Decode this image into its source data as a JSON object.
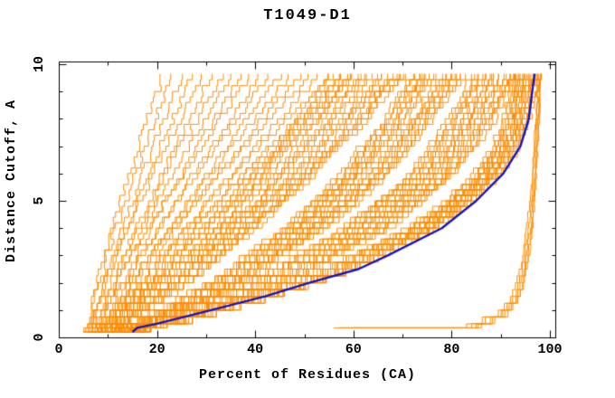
{
  "chart_data": {
    "type": "line",
    "title": "T1049-D1",
    "xlabel": "Percent of Residues (CA)",
    "ylabel": "Distance Cutoff, A",
    "xlim": [
      0,
      101.1
    ],
    "ylim": [
      0,
      10.1
    ],
    "x_major_ticks": [
      0,
      20,
      40,
      60,
      80,
      100
    ],
    "x_minor_ticks": [
      10,
      30,
      50,
      70,
      90
    ],
    "y_major_ticks": [
      0,
      5,
      10
    ],
    "y_minor_ticks": [
      1,
      2,
      3,
      4,
      6,
      7,
      8,
      9
    ],
    "grid": false,
    "legend": null,
    "colors": {
      "models": "#ff8c00",
      "highlight": "#1414c8",
      "axis": "#000000",
      "background": "#ffffff"
    },
    "y_levels": [
      0.2,
      0.35,
      0.5,
      1,
      1.5,
      2,
      2.5,
      3,
      4,
      5,
      6,
      7,
      8,
      9,
      9.65
    ],
    "highlight_curve": [
      15,
      16,
      20,
      31,
      42,
      51,
      61,
      67,
      78,
      85,
      90.5,
      94,
      95.7,
      96.4,
      96.9
    ],
    "model_curves_left_fan": [
      [
        5,
        5.5,
        6,
        6.5,
        7,
        7.5,
        8.5,
        9,
        11,
        12.5,
        14.5,
        16,
        18,
        20,
        21
      ],
      [
        5,
        5.5,
        6,
        6.5,
        7,
        8,
        9,
        9.5,
        11.5,
        13.5,
        15.5,
        17.5,
        19.5,
        21.5,
        23
      ],
      [
        6,
        6.5,
        7,
        7.5,
        8.5,
        9,
        10,
        11,
        13,
        15,
        17,
        19,
        21.5,
        23.5,
        25
      ],
      [
        6,
        6.5,
        7,
        7.5,
        8.5,
        9.5,
        10.5,
        11.5,
        13.5,
        16,
        18,
        20.5,
        23,
        25.5,
        27
      ],
      [
        5,
        5.5,
        6,
        7,
        8,
        9,
        10,
        11,
        13.5,
        16.5,
        19,
        21.5,
        24.5,
        27,
        29
      ],
      [
        7,
        7.5,
        8,
        9,
        10,
        11,
        12,
        13,
        15.5,
        18.5,
        21,
        23.5,
        26.5,
        29,
        31
      ],
      [
        6,
        7,
        7,
        8,
        9,
        10.5,
        11.5,
        13,
        16,
        19,
        21.5,
        24.5,
        28,
        31,
        33
      ],
      [
        7,
        7.5,
        8,
        9,
        10.5,
        11.5,
        13,
        14.5,
        17,
        20,
        23,
        26.5,
        29.5,
        33,
        35
      ],
      [
        8,
        8.5,
        9,
        10,
        11.5,
        12.5,
        14,
        15.5,
        18.5,
        21.5,
        25,
        28,
        31.5,
        35,
        37
      ],
      [
        6.5,
        7,
        7.5,
        8.5,
        10,
        11.5,
        13,
        14.5,
        18,
        21.5,
        25,
        29,
        32.5,
        36.5,
        39
      ],
      [
        8.5,
        9,
        9.5,
        10.5,
        12,
        13.5,
        15,
        16.5,
        20,
        23.5,
        27,
        31,
        34.5,
        38.5,
        41
      ],
      [
        7.5,
        8,
        8.5,
        9.5,
        11.5,
        13,
        14.5,
        16.5,
        20,
        24,
        28,
        32,
        36,
        40,
        43
      ],
      [
        9.5,
        10,
        10.5,
        11.5,
        13.5,
        15,
        16.5,
        18.5,
        22,
        26,
        30,
        34,
        38,
        42,
        45
      ],
      [
        8.5,
        9,
        9.5,
        11,
        12.5,
        14.5,
        16,
        18,
        22,
        26.5,
        30.5,
        35,
        39.5,
        44,
        47
      ],
      [
        9.5,
        10,
        10.5,
        12,
        14,
        15.5,
        17.5,
        19.5,
        23.5,
        28,
        32,
        36.5,
        41,
        46,
        49
      ],
      [
        7.5,
        8,
        9,
        10.5,
        12.5,
        14,
        16,
        18.5,
        23,
        27.5,
        32.5,
        37.5,
        42.5,
        47.5,
        51
      ],
      [
        10.5,
        11,
        11.5,
        13,
        15,
        17,
        19,
        21,
        25.5,
        30,
        35,
        39.5,
        44.5,
        49.5,
        53
      ],
      [
        9.5,
        10,
        11,
        12.5,
        14.5,
        16.5,
        18.5,
        21,
        25.5,
        30.5,
        35.5,
        40.5,
        46,
        51.5,
        55
      ],
      [
        10.5,
        11,
        12,
        13.5,
        15.5,
        17.5,
        20,
        22,
        27,
        32,
        37,
        42.5,
        48,
        53.5,
        57
      ],
      [
        8.5,
        9.5,
        10,
        12,
        14,
        16.5,
        18.5,
        21,
        26.5,
        32,
        37.5,
        43,
        49,
        55,
        59
      ],
      [
        10.5,
        11,
        12,
        14,
        16,
        18,
        20.5,
        23,
        28,
        33.5,
        39,
        44.5,
        50,
        56,
        60
      ],
      [
        11.5,
        12,
        13,
        15,
        17,
        19.5,
        21.5,
        24.5,
        29.5,
        35,
        40.5,
        46,
        52,
        58,
        62
      ]
    ],
    "model_curves_main_cluster": [
      [
        5,
        6.5,
        7,
        11,
        14,
        17,
        21,
        23,
        29,
        34,
        39,
        44,
        48,
        52,
        55
      ],
      [
        6,
        7.5,
        8,
        12,
        15,
        18,
        22,
        25,
        31,
        36,
        41,
        45,
        50,
        54,
        57
      ],
      [
        6,
        8,
        9,
        12,
        16,
        19,
        22,
        26,
        32,
        37,
        42,
        47,
        52,
        56,
        59
      ],
      [
        7,
        9,
        10,
        13,
        17,
        20,
        24,
        27,
        33,
        39,
        44,
        49,
        54,
        58,
        61
      ],
      [
        7,
        9,
        10,
        14,
        17,
        21,
        24,
        28,
        34,
        40,
        45,
        50,
        55,
        60,
        63
      ],
      [
        8,
        10,
        11,
        15,
        18,
        22,
        26,
        29,
        35,
        41,
        47,
        52,
        57,
        62,
        65
      ],
      [
        8,
        10,
        11,
        15,
        19,
        22,
        26,
        29,
        36,
        42,
        48,
        53,
        58,
        63,
        66
      ],
      [
        9,
        11,
        12,
        16,
        20,
        23,
        27,
        31,
        37,
        44,
        49,
        55,
        60,
        64,
        68
      ],
      [
        9,
        11,
        12,
        16,
        20,
        24,
        28,
        31,
        38,
        44,
        50,
        55,
        61,
        65,
        69
      ],
      [
        10,
        12,
        13,
        17,
        21,
        25,
        29,
        32,
        39,
        45,
        51,
        56,
        62,
        66,
        70
      ],
      [
        10,
        12,
        13,
        19,
        24,
        29,
        34,
        37,
        45,
        51,
        57,
        61,
        66,
        69,
        72
      ],
      [
        11,
        13,
        14,
        20,
        25,
        30,
        35,
        38,
        46,
        52,
        58,
        62,
        67,
        70,
        73
      ],
      [
        11,
        13,
        14,
        20,
        25,
        30,
        35,
        39,
        47,
        53,
        59,
        63,
        68,
        71,
        74
      ],
      [
        12,
        14,
        15,
        21,
        26,
        31,
        36,
        40,
        48,
        54,
        60,
        64,
        69,
        72,
        75
      ],
      [
        12,
        14,
        15,
        21,
        26,
        31,
        36,
        40,
        48,
        55,
        60,
        65,
        70,
        73,
        76
      ],
      [
        13,
        15,
        16,
        22,
        28,
        33,
        38,
        42,
        50,
        56,
        62,
        67,
        72,
        75,
        78
      ],
      [
        13,
        15,
        16,
        22,
        28,
        33,
        38,
        42,
        50,
        57,
        63,
        68,
        72,
        76,
        79
      ],
      [
        14,
        16,
        17,
        23,
        29,
        34,
        39,
        43,
        51,
        58,
        64,
        69,
        73,
        77,
        80
      ],
      [
        14,
        16,
        17,
        23,
        29,
        34,
        39,
        43,
        52,
        59,
        65,
        70,
        74,
        78,
        81
      ],
      [
        15,
        17,
        18,
        24,
        30,
        35,
        40,
        44,
        53,
        60,
        66,
        71,
        75,
        79,
        82
      ],
      [
        8,
        10,
        12,
        20,
        28,
        35,
        42,
        47,
        57,
        64,
        71,
        75,
        79,
        82,
        84
      ],
      [
        9,
        11,
        13,
        21,
        29,
        36,
        43,
        48,
        58,
        65,
        72,
        76,
        80,
        83,
        85
      ],
      [
        10,
        12,
        14,
        22,
        30,
        37,
        44,
        49,
        59,
        66,
        73,
        77,
        81,
        84,
        86
      ],
      [
        11,
        13,
        15,
        23,
        31,
        38,
        45,
        50,
        60,
        67,
        74,
        78,
        82,
        85,
        87
      ],
      [
        12,
        14,
        16,
        24,
        32,
        39,
        46,
        51,
        61,
        68,
        75,
        79,
        83,
        86,
        88
      ],
      [
        13,
        15,
        17,
        25,
        33,
        40,
        47,
        52,
        62,
        69,
        76,
        80,
        84,
        87,
        89
      ],
      [
        14,
        16,
        18,
        26,
        34,
        41,
        48,
        53,
        63,
        70,
        77,
        81,
        85,
        88,
        90
      ],
      [
        15,
        17,
        19,
        27,
        35,
        42,
        49,
        54,
        64,
        71,
        78,
        82,
        86,
        89,
        91
      ],
      [
        15,
        17,
        19,
        28,
        36,
        42,
        50,
        54,
        65,
        72,
        79,
        83,
        87,
        90,
        92
      ],
      [
        16,
        18,
        20,
        29,
        36,
        43,
        50,
        55,
        66,
        73,
        79,
        84,
        88,
        90,
        92.5
      ],
      [
        9,
        11,
        14,
        25,
        35,
        44,
        52,
        58,
        70,
        78,
        84,
        88,
        90,
        92,
        93
      ],
      [
        10,
        12,
        15,
        26,
        36,
        44,
        53,
        59,
        71,
        79,
        85,
        89,
        91,
        92,
        93.5
      ],
      [
        11,
        13,
        16,
        27,
        37,
        45,
        54,
        59,
        71,
        79,
        85,
        89,
        92,
        93,
        94
      ],
      [
        12,
        14,
        17,
        28,
        37,
        46,
        55,
        60,
        72,
        80,
        86,
        90,
        92,
        93,
        94.5
      ],
      [
        13,
        15,
        18,
        28,
        38,
        47,
        55,
        61,
        73,
        80,
        86,
        90,
        93,
        94,
        95
      ],
      [
        14,
        16,
        19,
        29,
        39,
        48,
        56,
        62,
        73,
        81,
        87,
        91,
        93,
        94,
        95.5
      ],
      [
        14,
        16,
        19,
        29,
        39,
        48,
        56,
        62,
        74,
        81,
        87,
        91,
        94,
        95,
        96
      ],
      [
        15,
        17,
        20,
        30,
        40,
        49,
        57,
        63,
        74,
        82,
        88,
        92,
        94,
        95,
        96.5
      ],
      [
        16,
        18,
        21,
        31,
        41,
        49,
        58,
        63,
        75,
        82,
        88,
        92,
        95,
        96,
        97
      ],
      [
        16,
        18,
        21,
        31,
        41,
        50,
        58,
        64,
        75,
        83,
        89,
        93,
        95,
        96,
        97.5
      ]
    ],
    "model_curves_best": [
      [
        null,
        57,
        84,
        90,
        92.5,
        93.5,
        94.2,
        94.8,
        95.6,
        96.2,
        96.6,
        97,
        97.3,
        97.6,
        97.8
      ],
      [
        null,
        58,
        85,
        90.5,
        93,
        94,
        94.7,
        95.2,
        96,
        96.5,
        96.9,
        97.2,
        97.5,
        97.8,
        98
      ],
      [
        null,
        59,
        85.5,
        91,
        93.3,
        94.3,
        95,
        95.5,
        96.2,
        96.7,
        97,
        97.4,
        97.7,
        97.9,
        98.1
      ],
      [
        null,
        60,
        86,
        91.5,
        93.6,
        94.6,
        95.2,
        95.7,
        96.4,
        96.9,
        97.2,
        97.5,
        97.8,
        98,
        98.2
      ],
      [
        null,
        56,
        83,
        89.5,
        92,
        93,
        93.8,
        94.4,
        95.2,
        95.9,
        96.4,
        96.8,
        97.1,
        97.4,
        97.6
      ]
    ]
  }
}
